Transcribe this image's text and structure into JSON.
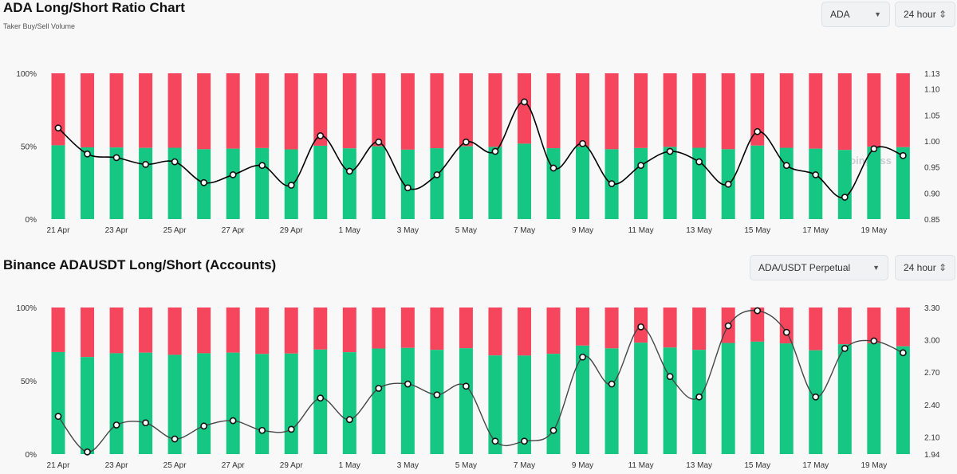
{
  "header1": {
    "title": "ADA Long/Short Ratio Chart",
    "subtitle": "Taker Buy/Sell Volume",
    "coin_select": "ADA",
    "interval_select": "24 hour"
  },
  "header2": {
    "title": "Binance ADAUSDT Long/Short (Accounts)",
    "pair_select": "ADA/USDT Perpetual",
    "interval_select": "24 hour"
  },
  "icons": {
    "dropdown": "chevron-down-icon",
    "stepper": "up-down-chevron-icon"
  },
  "colors": {
    "long": "#16c784",
    "short": "#f6465d",
    "ratio_line": "#000000"
  },
  "watermark": "coinglass",
  "chart_data": [
    {
      "type": "bar",
      "subtype": "stacked-percent-with-line",
      "categories": [
        "21 Apr",
        "22 Apr",
        "23 Apr",
        "24 Apr",
        "25 Apr",
        "26 Apr",
        "27 Apr",
        "28 Apr",
        "29 Apr",
        "30 Apr",
        "1 May",
        "2 May",
        "3 May",
        "4 May",
        "5 May",
        "6 May",
        "7 May",
        "8 May",
        "9 May",
        "10 May",
        "11 May",
        "12 May",
        "13 May",
        "14 May",
        "15 May",
        "16 May",
        "17 May",
        "18 May",
        "19 May",
        "20 May"
      ],
      "x_tick_labels": [
        "21 Apr",
        "23 Apr",
        "25 Apr",
        "27 Apr",
        "29 Apr",
        "1 May",
        "3 May",
        "5 May",
        "7 May",
        "9 May",
        "11 May",
        "13 May",
        "15 May",
        "17 May",
        "19 May"
      ],
      "series": [
        {
          "name": "Long",
          "values": [
            50.6,
            49.2,
            49.1,
            48.8,
            48.9,
            47.9,
            48.3,
            48.7,
            47.8,
            50.3,
            48.5,
            49.9,
            47.6,
            48.6,
            49.9,
            49.5,
            51.7,
            48.6,
            49.8,
            47.9,
            48.7,
            49.5,
            48.9,
            47.9,
            50.4,
            48.9,
            48.3,
            47.4,
            49.6,
            49.3
          ]
        },
        {
          "name": "Short",
          "values": [
            49.4,
            50.8,
            50.9,
            51.2,
            51.1,
            52.1,
            51.7,
            51.3,
            52.2,
            49.7,
            51.5,
            50.1,
            52.4,
            51.4,
            50.1,
            50.5,
            48.3,
            51.4,
            50.2,
            52.1,
            51.3,
            50.5,
            51.1,
            52.1,
            49.6,
            51.1,
            51.7,
            52.6,
            50.4,
            50.7
          ]
        },
        {
          "name": "Ratio",
          "axis": "right",
          "values": [
            1.025,
            0.975,
            0.968,
            0.955,
            0.96,
            0.92,
            0.935,
            0.953,
            0.915,
            1.01,
            0.942,
            0.998,
            0.91,
            0.935,
            0.998,
            0.98,
            1.075,
            0.948,
            0.995,
            0.918,
            0.953,
            0.98,
            0.96,
            0.917,
            1.018,
            0.953,
            0.935,
            0.892,
            0.985,
            0.972
          ]
        }
      ],
      "y_left": {
        "ylim": [
          0,
          100
        ],
        "tick_labels": [
          "0%",
          "50%",
          "100%"
        ]
      },
      "y_right": {
        "ylim": [
          0.85,
          1.13
        ],
        "tick_labels": [
          "0.85",
          "0.90",
          "0.95",
          "1.00",
          "1.05",
          "1.10",
          "1.13"
        ]
      },
      "legend": "none",
      "grid": false
    },
    {
      "type": "bar",
      "subtype": "stacked-percent-with-line",
      "categories": [
        "21 Apr",
        "22 Apr",
        "23 Apr",
        "24 Apr",
        "25 Apr",
        "26 Apr",
        "27 Apr",
        "28 Apr",
        "29 Apr",
        "30 Apr",
        "1 May",
        "2 May",
        "3 May",
        "4 May",
        "5 May",
        "6 May",
        "7 May",
        "8 May",
        "9 May",
        "10 May",
        "11 May",
        "12 May",
        "13 May",
        "14 May",
        "15 May",
        "16 May",
        "17 May",
        "18 May",
        "19 May",
        "20 May"
      ],
      "x_tick_labels": [
        "21 Apr",
        "23 Apr",
        "25 Apr",
        "27 Apr",
        "29 Apr",
        "1 May",
        "3 May",
        "5 May",
        "7 May",
        "9 May",
        "11 May",
        "13 May",
        "15 May",
        "17 May",
        "19 May"
      ],
      "series": [
        {
          "name": "Long",
          "values": [
            69.6,
            66.2,
            68.8,
            69.2,
            67.7,
            68.8,
            69.2,
            68.3,
            68.6,
            71.3,
            69.5,
            72.0,
            72.4,
            71.1,
            72.2,
            67.3,
            67.2,
            68.4,
            74.0,
            72.1,
            76.0,
            72.7,
            71.1,
            75.8,
            76.7,
            75.5,
            70.8,
            74.9,
            75.6,
            73.5
          ]
        },
        {
          "name": "Short",
          "values": [
            30.4,
            33.8,
            31.2,
            30.8,
            32.3,
            31.2,
            30.8,
            31.7,
            31.4,
            28.7,
            30.5,
            28.0,
            27.6,
            28.9,
            27.8,
            32.7,
            32.8,
            31.6,
            26.0,
            27.9,
            24.0,
            27.3,
            28.9,
            24.2,
            23.3,
            24.5,
            29.2,
            25.1,
            24.4,
            26.5
          ]
        },
        {
          "name": "Ratio",
          "axis": "right",
          "values": [
            2.29,
            1.96,
            2.21,
            2.23,
            2.08,
            2.2,
            2.25,
            2.16,
            2.17,
            2.46,
            2.26,
            2.55,
            2.59,
            2.49,
            2.57,
            2.06,
            2.06,
            2.16,
            2.84,
            2.59,
            3.12,
            2.66,
            2.47,
            3.13,
            3.27,
            3.07,
            2.47,
            2.92,
            2.99,
            2.88
          ]
        }
      ],
      "y_left": {
        "ylim": [
          0,
          100
        ],
        "tick_labels": [
          "0%",
          "50%",
          "100%"
        ]
      },
      "y_right": {
        "ylim": [
          1.94,
          3.3
        ],
        "tick_labels": [
          "1.94",
          "2.10",
          "2.40",
          "2.70",
          "3.00",
          "3.30"
        ]
      },
      "legend": "none",
      "grid": false
    }
  ]
}
